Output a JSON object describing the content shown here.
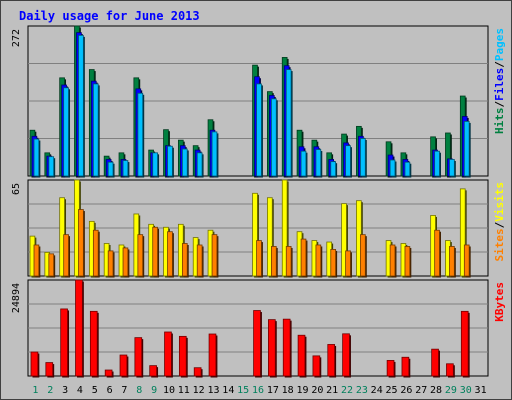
{
  "title": "Daily usage for June 2013",
  "chart_data": [
    {
      "type": "bar",
      "panel": "pages-files-hits",
      "x": [
        1,
        2,
        3,
        4,
        5,
        6,
        7,
        8,
        9,
        10,
        11,
        12,
        13,
        14,
        15,
        16,
        17,
        18,
        19,
        20,
        21,
        22,
        23,
        24,
        25,
        26,
        27,
        28,
        29,
        30,
        31
      ],
      "ymax_label": "272",
      "ylim": [
        0,
        272
      ],
      "right_label_parts": [
        "Pages",
        "Files",
        "Hits"
      ],
      "series": [
        {
          "name": "Hits",
          "values": [
            83,
            42,
            178,
            272,
            193,
            36,
            42,
            178,
            47,
            84,
            65,
            55,
            102,
            0,
            0,
            201,
            153,
            215,
            83,
            65,
            42,
            76,
            90,
            0,
            62,
            42,
            0,
            71,
            78,
            145,
            0
          ]
        },
        {
          "name": "Files",
          "values": [
            72,
            36,
            165,
            260,
            172,
            30,
            30,
            158,
            42,
            55,
            55,
            47,
            83,
            0,
            0,
            180,
            146,
            200,
            53,
            53,
            30,
            60,
            72,
            0,
            38,
            30,
            0,
            47,
            31,
            108,
            0
          ]
        },
        {
          "name": "Pages",
          "values": [
            67,
            35,
            160,
            255,
            167,
            25,
            28,
            150,
            42,
            54,
            49,
            42,
            80,
            0,
            0,
            167,
            140,
            193,
            45,
            48,
            26,
            55,
            68,
            0,
            29,
            25,
            0,
            45,
            30,
            99,
            0
          ]
        }
      ],
      "colors": {
        "Hits": "#008040",
        "Files": "#0000ff",
        "Pages": "#00c0ff"
      }
    },
    {
      "type": "bar",
      "panel": "visits-sites",
      "x": [
        1,
        2,
        3,
        4,
        5,
        6,
        7,
        8,
        9,
        10,
        11,
        12,
        13,
        14,
        15,
        16,
        17,
        18,
        19,
        20,
        21,
        22,
        23,
        24,
        25,
        26,
        27,
        28,
        29,
        30,
        31
      ],
      "ymax_label": "65",
      "ylim": [
        0,
        65
      ],
      "right_label_parts": [
        "Visits",
        "Sites"
      ],
      "series": [
        {
          "name": "Visits",
          "values": [
            27,
            16,
            53,
            65,
            37,
            22,
            21,
            42,
            35,
            33,
            35,
            26,
            31,
            0,
            0,
            56,
            53,
            65,
            30,
            24,
            23,
            49,
            51,
            0,
            24,
            22,
            0,
            41,
            24,
            59,
            0
          ]
        },
        {
          "name": "Sites",
          "values": [
            21,
            15,
            28,
            45,
            31,
            17,
            19,
            28,
            33,
            30,
            22,
            21,
            28,
            0,
            0,
            24,
            20,
            20,
            25,
            21,
            18,
            17,
            28,
            0,
            21,
            20,
            0,
            31,
            20,
            21,
            0
          ]
        }
      ],
      "colors": {
        "Visits": "#ffff00",
        "Sites": "#ff8000"
      }
    },
    {
      "type": "bar",
      "panel": "kbytes",
      "x": [
        1,
        2,
        3,
        4,
        5,
        6,
        7,
        8,
        9,
        10,
        11,
        12,
        13,
        14,
        15,
        16,
        17,
        18,
        19,
        20,
        21,
        22,
        23,
        24,
        25,
        26,
        27,
        28,
        29,
        30,
        31
      ],
      "ymax_label": "24894",
      "ylim": [
        0,
        24894
      ],
      "right_label_parts": [
        "KBytes"
      ],
      "series": [
        {
          "name": "KBytes",
          "values": [
            6220,
            3485,
            17390,
            24894,
            16770,
            1550,
            5440,
            9950,
            2690,
            11410,
            10280,
            2150,
            10890,
            0,
            0,
            16980,
            14620,
            14740,
            10570,
            5220,
            8180,
            10940,
            0,
            0,
            4040,
            4860,
            0,
            6960,
            3170,
            16770,
            0
          ]
        }
      ],
      "colors": {
        "KBytes": "#ff0000"
      }
    }
  ],
  "weekend_days": [
    1,
    2,
    8,
    9,
    15,
    16,
    22,
    23,
    29,
    30
  ],
  "colors": {
    "weekday_label": "#000000",
    "weekend_label": "#00805c",
    "title": "#0000ff",
    "panel_bg": "#c0c0c0",
    "gridline": "#808080"
  }
}
